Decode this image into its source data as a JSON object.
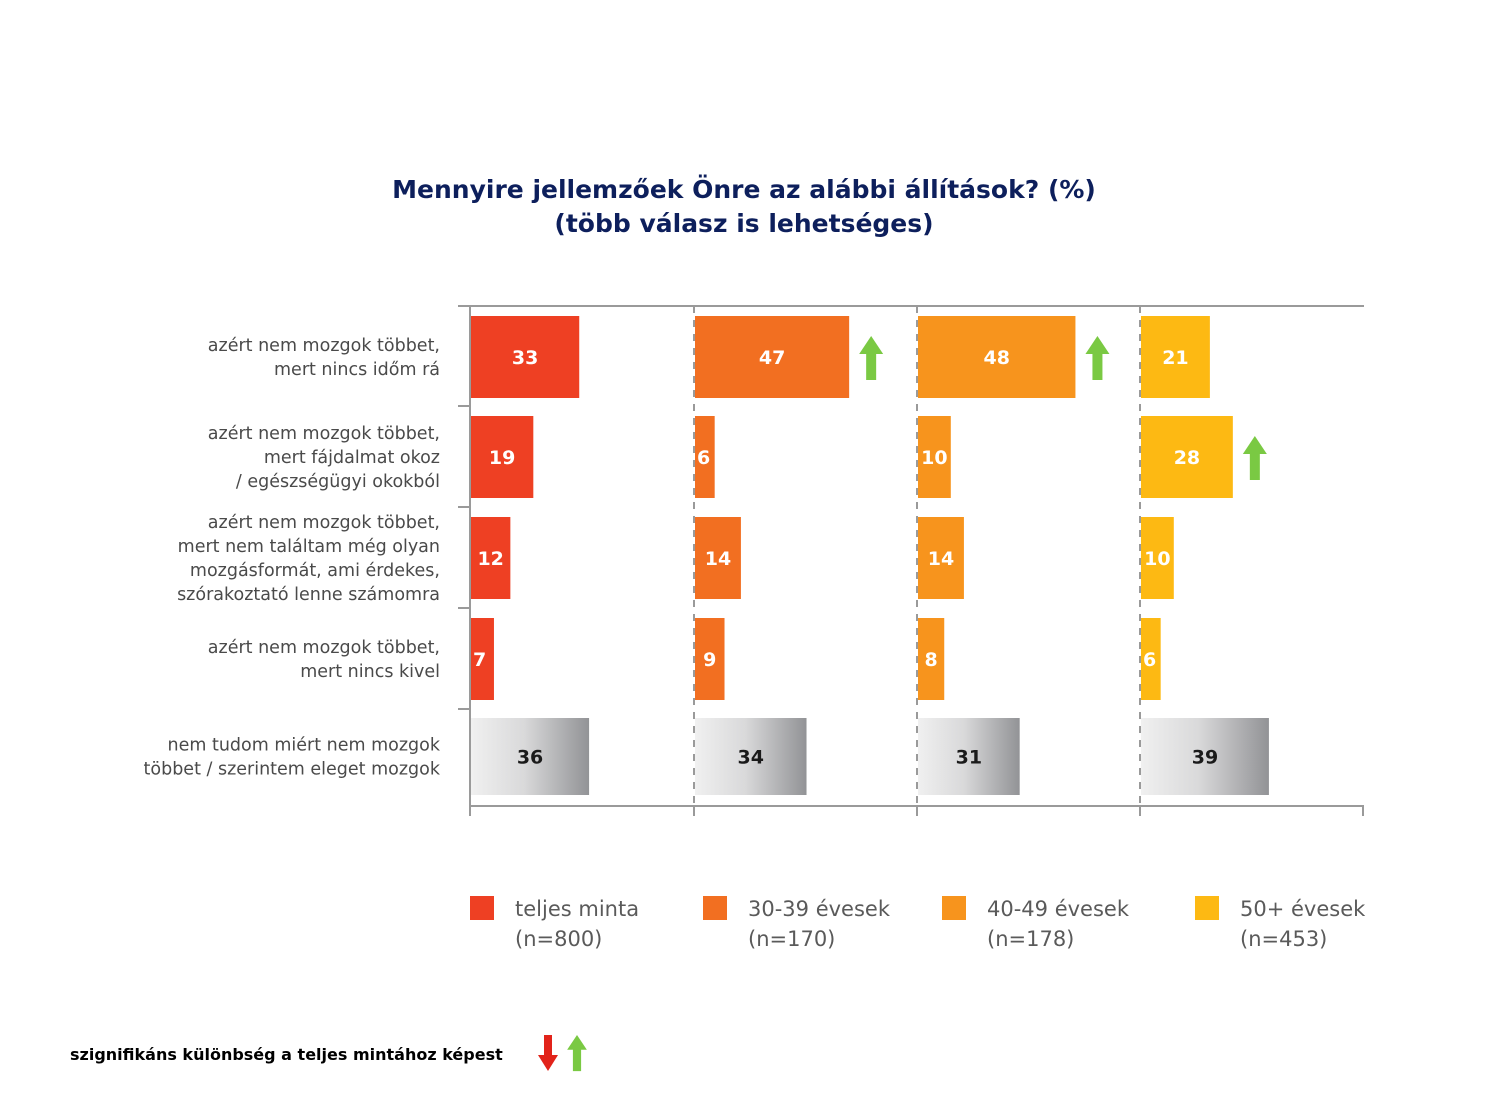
{
  "chart_data": {
    "type": "bar",
    "orientation": "horizontal",
    "title": "Mennyire jellemzőek Önre az alábbi állítások? (%)",
    "subtitle": "(több válasz is lehetséges)",
    "categories": [
      [
        "azért nem mozgok többet,",
        "mert nincs időm rá"
      ],
      [
        "azért nem mozgok többet,",
        "mert fájdalmat okoz",
        "/ egészségügyi okokból"
      ],
      [
        "azért nem mozgok többet,",
        "mert nem találtam még olyan",
        "mozgásformát, ami érdekes,",
        "szórakoztató lenne számomra"
      ],
      [
        "azért nem mozgok többet,",
        "mert nincs kivel"
      ],
      [
        "nem tudom miért nem mozgok",
        "többet / szerintem eleget mozgok"
      ]
    ],
    "series": [
      {
        "name": "teljes minta",
        "n": "(n=800)",
        "color": "#ee4023",
        "values": [
          33,
          19,
          12,
          7,
          36
        ]
      },
      {
        "name": "30-39 évesek",
        "n": "(n=170)",
        "color": "#f26f21",
        "values": [
          47,
          6,
          14,
          9,
          34
        ]
      },
      {
        "name": "40-49 évesek",
        "n": "(n=178)",
        "color": "#f7941d",
        "values": [
          48,
          10,
          14,
          8,
          31
        ]
      },
      {
        "name": "50+ évesek",
        "n": "(n=453)",
        "color": "#fdb913",
        "values": [
          21,
          28,
          10,
          6,
          39
        ]
      }
    ],
    "last_category_color": "gray-gradient",
    "significance_up": [
      [],
      [
        0
      ],
      [
        0
      ],
      [
        1
      ]
    ],
    "up_arrow_color": "#7ac943",
    "down_arrow_color": "#e2231a",
    "footnote": "szignifikáns különbség a teljes mintához képest",
    "grid": false,
    "legend_position": "bottom"
  }
}
